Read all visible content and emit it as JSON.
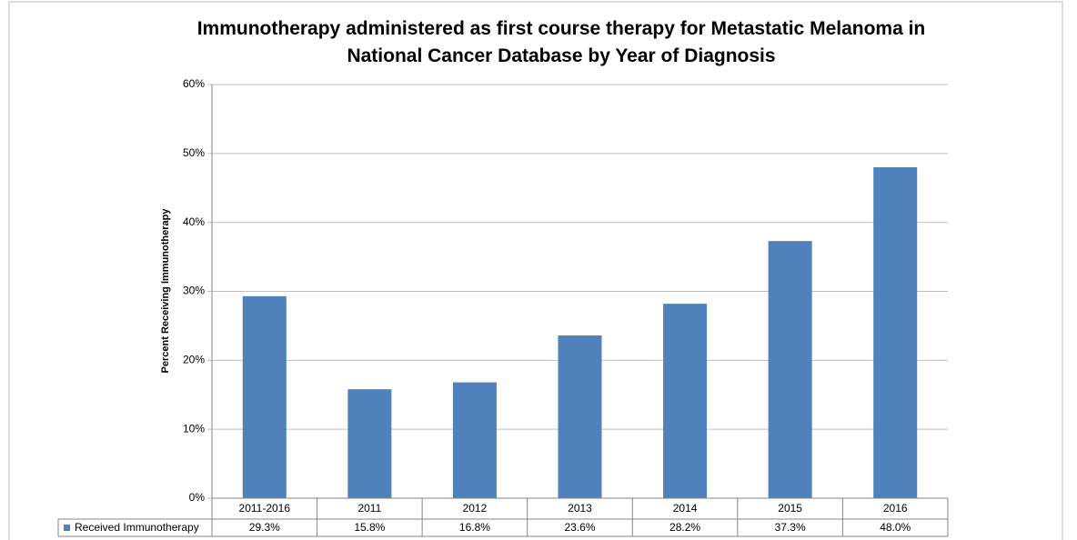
{
  "chart_data": {
    "type": "bar",
    "title": "Immunotherapy administered as first course therapy for Metastatic Melanoma  in National Cancer Database by Year of Diagnosis",
    "y_label": "Percent Receiving Immunotherapy",
    "categories": [
      "2011-2016",
      "2011",
      "2012",
      "2013",
      "2014",
      "2015",
      "2016"
    ],
    "series": [
      {
        "name": "Received Immunotherapy",
        "color": "#4f81bd",
        "values": [
          29.3,
          15.8,
          16.8,
          23.6,
          28.2,
          37.3,
          48.0
        ],
        "value_labels": [
          "29.3%",
          "15.8%",
          "16.8%",
          "23.6%",
          "28.2%",
          "37.3%",
          "48.0%"
        ]
      }
    ],
    "ylim": [
      0,
      60
    ],
    "yticks": [
      {
        "value": 0,
        "label": "0%"
      },
      {
        "value": 10,
        "label": "10%"
      },
      {
        "value": 20,
        "label": "20%"
      },
      {
        "value": 30,
        "label": "30%"
      },
      {
        "value": 40,
        "label": "40%"
      },
      {
        "value": 50,
        "label": "50%"
      },
      {
        "value": 60,
        "label": "60%"
      }
    ],
    "grid": true
  }
}
